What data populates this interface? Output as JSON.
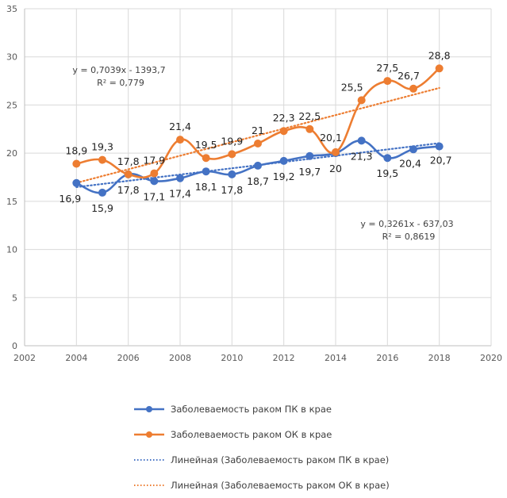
{
  "chart_data": {
    "type": "line",
    "title": "",
    "xlabel": "",
    "ylabel": "",
    "xlim": [
      2002,
      2020
    ],
    "ylim": [
      0,
      35
    ],
    "x_ticks": [
      2002,
      2004,
      2006,
      2008,
      2010,
      2012,
      2014,
      2016,
      2018,
      2020
    ],
    "y_ticks": [
      0,
      5,
      10,
      15,
      20,
      25,
      30,
      35
    ],
    "x_tick_labels": [
      "2002",
      "2004",
      "2006",
      "2008",
      "2010",
      "2012",
      "2014",
      "2016",
      "2018",
      "2020"
    ],
    "y_tick_labels": [
      "0",
      "5",
      "10",
      "15",
      "20",
      "25",
      "30",
      "35"
    ],
    "grid": true,
    "legend_position": "bottom",
    "x": [
      2004,
      2005,
      2006,
      2007,
      2008,
      2009,
      2010,
      2011,
      2012,
      2013,
      2014,
      2015,
      2016,
      2017,
      2018
    ],
    "series": [
      {
        "name": "Заболеваемость раком ПК в крае",
        "color": "#4472C4",
        "values": [
          16.9,
          15.9,
          17.8,
          17.1,
          17.4,
          18.1,
          17.8,
          18.7,
          19.2,
          19.7,
          20,
          21.3,
          19.5,
          20.4,
          20.7
        ],
        "labels": [
          "16,9",
          "15,9",
          "17,8",
          "17,1",
          "17,4",
          "18,1",
          "17,8",
          "18,7",
          "19,2",
          "19,7",
          "20",
          "21,3",
          "19,5",
          "20,4",
          "20,7"
        ]
      },
      {
        "name": "Заболеваемость раком ОК в крае",
        "color": "#ED7D31",
        "values": [
          18.9,
          19.3,
          17.8,
          17.9,
          21.4,
          19.5,
          19.9,
          21,
          22.3,
          22.5,
          20.1,
          25.5,
          27.5,
          26.7,
          28.8
        ],
        "labels": [
          "18,9",
          "19,3",
          "17,8",
          "17,9",
          "21,4",
          "19,5",
          "19,9",
          "21",
          "22,3",
          "22,5",
          "20,1",
          "25,5",
          "27,5",
          "26,7",
          "28,8"
        ]
      }
    ],
    "trendlines": [
      {
        "name": "Линейная (Заболеваемость раком ПК в крае)",
        "color": "#4472C4",
        "slope": 0.3261,
        "intercept": -637.03,
        "equation": "y = 0,3261x - 637,03",
        "r2": "R² = 0,8619"
      },
      {
        "name": "Линейная (Заболеваемость раком ОК в крае)",
        "color": "#ED7D31",
        "slope": 0.7039,
        "intercept": -1393.7,
        "equation": "y = 0,7039x - 1393,7",
        "r2": "R² = 0,779"
      }
    ]
  },
  "legend": {
    "items": [
      {
        "label": "Заболеваемость раком ПК в крае",
        "color": "#4472C4",
        "style": "line-marker"
      },
      {
        "label": "Заболеваемость раком ОК в крае",
        "color": "#ED7D31",
        "style": "line-marker"
      },
      {
        "label": "Линейная (Заболеваемость раком ПК в крае)",
        "color": "#4472C4",
        "style": "dotted"
      },
      {
        "label": "Линейная (Заболеваемость раком ОК в крае)",
        "color": "#ED7D31",
        "style": "dotted"
      }
    ]
  }
}
